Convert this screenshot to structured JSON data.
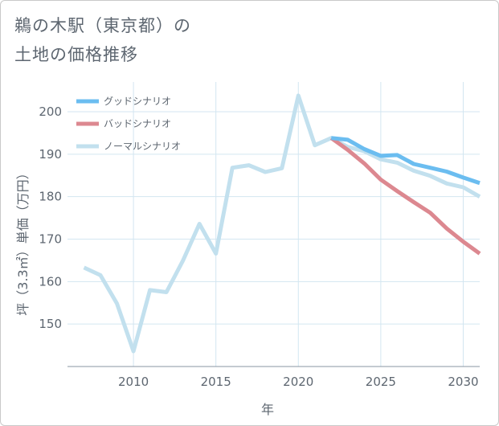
{
  "chart_data": {
    "type": "line",
    "title": [
      "鵜の木駅（東京都）の",
      "土地の価格推移"
    ],
    "xlabel": "年",
    "ylabel": "坪（3.3㎡）単価（万円）",
    "xlim": [
      2006,
      2031
    ],
    "ylim": [
      140,
      207
    ],
    "xticks": [
      2010,
      2015,
      2020,
      2025,
      2030
    ],
    "yticks": [
      150,
      160,
      170,
      180,
      190,
      200
    ],
    "grid": true,
    "legend_position": "top-left",
    "series": [
      {
        "name": "グッドシナリオ",
        "color": "#6bbdf0",
        "x": [
          2022,
          2023,
          2024,
          2025,
          2026,
          2027,
          2028,
          2029,
          2030,
          2031
        ],
        "values": [
          193.8,
          193.4,
          191.2,
          189.6,
          189.8,
          187.7,
          186.8,
          185.9,
          184.5,
          183.2
        ]
      },
      {
        "name": "バッドシナリオ",
        "color": "#dc8890",
        "x": [
          2022,
          2023,
          2024,
          2025,
          2026,
          2027,
          2028,
          2029,
          2030,
          2031
        ],
        "values": [
          193.8,
          191.0,
          187.8,
          184.0,
          181.3,
          178.7,
          176.2,
          172.5,
          169.4,
          166.6
        ]
      },
      {
        "name": "ノーマルシナリオ",
        "color": "#c2e0ee",
        "x": [
          2007,
          2008,
          2009,
          2010,
          2011,
          2012,
          2013,
          2014,
          2015,
          2016,
          2017,
          2018,
          2019,
          2020,
          2021,
          2022,
          2023,
          2024,
          2025,
          2026,
          2027,
          2028,
          2029,
          2030,
          2031
        ],
        "values": [
          163.3,
          161.5,
          154.8,
          143.6,
          158.0,
          157.5,
          164.9,
          173.6,
          166.6,
          186.8,
          187.4,
          185.8,
          186.7,
          203.8,
          192.1,
          193.8,
          191.7,
          190.7,
          188.8,
          188.0,
          186.1,
          184.9,
          183.1,
          182.2,
          180.0
        ]
      }
    ]
  }
}
